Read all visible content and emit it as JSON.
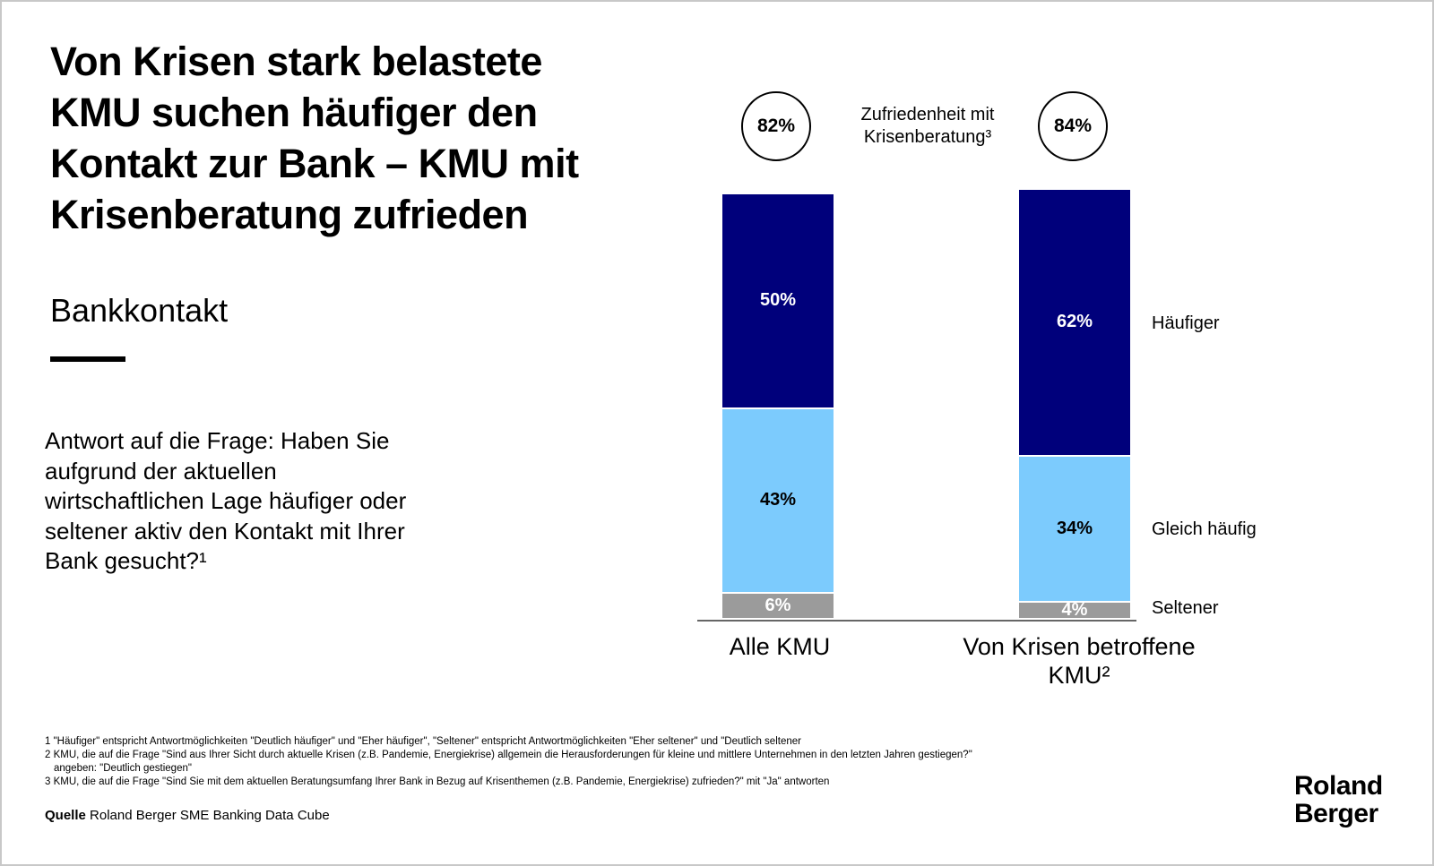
{
  "title": "Von Krisen stark belastete KMU suchen häufiger den Kontakt zur Bank – KMU mit Krisenberatung zufrieden",
  "subtitle": "Bankkontakt",
  "question": "Antwort auf die Frage: Haben Sie aufgrund der aktuellen wirtschaftlichen Lage häufiger oder seltener aktiv den Kontakt mit Ihrer Bank gesucht?¹",
  "satisfaction": {
    "label": "Zufriedenheit mit Krisenberatung³",
    "values": [
      "82%",
      "84%"
    ]
  },
  "chart_data": {
    "type": "bar",
    "stacked": true,
    "categories": [
      "Alle KMU",
      "Von Krisen betroffene KMU²"
    ],
    "series": [
      {
        "name": "Seltener",
        "values": [
          6,
          4
        ],
        "labels": [
          "6%",
          "4%"
        ],
        "color": "#9b9b9b"
      },
      {
        "name": "Gleich häufig",
        "values": [
          43,
          34
        ],
        "labels": [
          "43%",
          "34%"
        ],
        "color": "#7ccbfd"
      },
      {
        "name": "Häufiger",
        "values": [
          50,
          62
        ],
        "labels": [
          "50%",
          "62%"
        ],
        "color": "#00007b"
      }
    ],
    "ylim": [
      0,
      100
    ],
    "legend": "right"
  },
  "footnotes": [
    "1 \"Häufiger\" entspricht Antwortmöglichkeiten \"Deutlich häufiger\" und \"Eher häufiger\", \"Seltener\" entspricht Antwortmöglichkeiten \"Eher seltener\" und \"Deutlich seltener",
    "2 KMU, die auf die Frage \"Sind aus Ihrer Sicht durch aktuelle Krisen (z.B. Pandemie, Energiekrise) allgemein die Herausforderungen für kleine und mittlere Unternehmen in den letzten Jahren gestiegen?\" angeben: \"Deutlich gestiegen\"",
    "3 KMU, die auf die Frage \"Sind Sie mit dem aktuellen Beratungsumfang Ihrer Bank in Bezug auf Krisenthemen (z.B. Pandemie, Energiekrise) zufrieden?\" mit \"Ja\" antworten"
  ],
  "source": {
    "label": "Quelle",
    "text": "Roland Berger SME Banking Data Cube"
  },
  "logo": {
    "line1": "Roland",
    "line2": "Berger"
  }
}
